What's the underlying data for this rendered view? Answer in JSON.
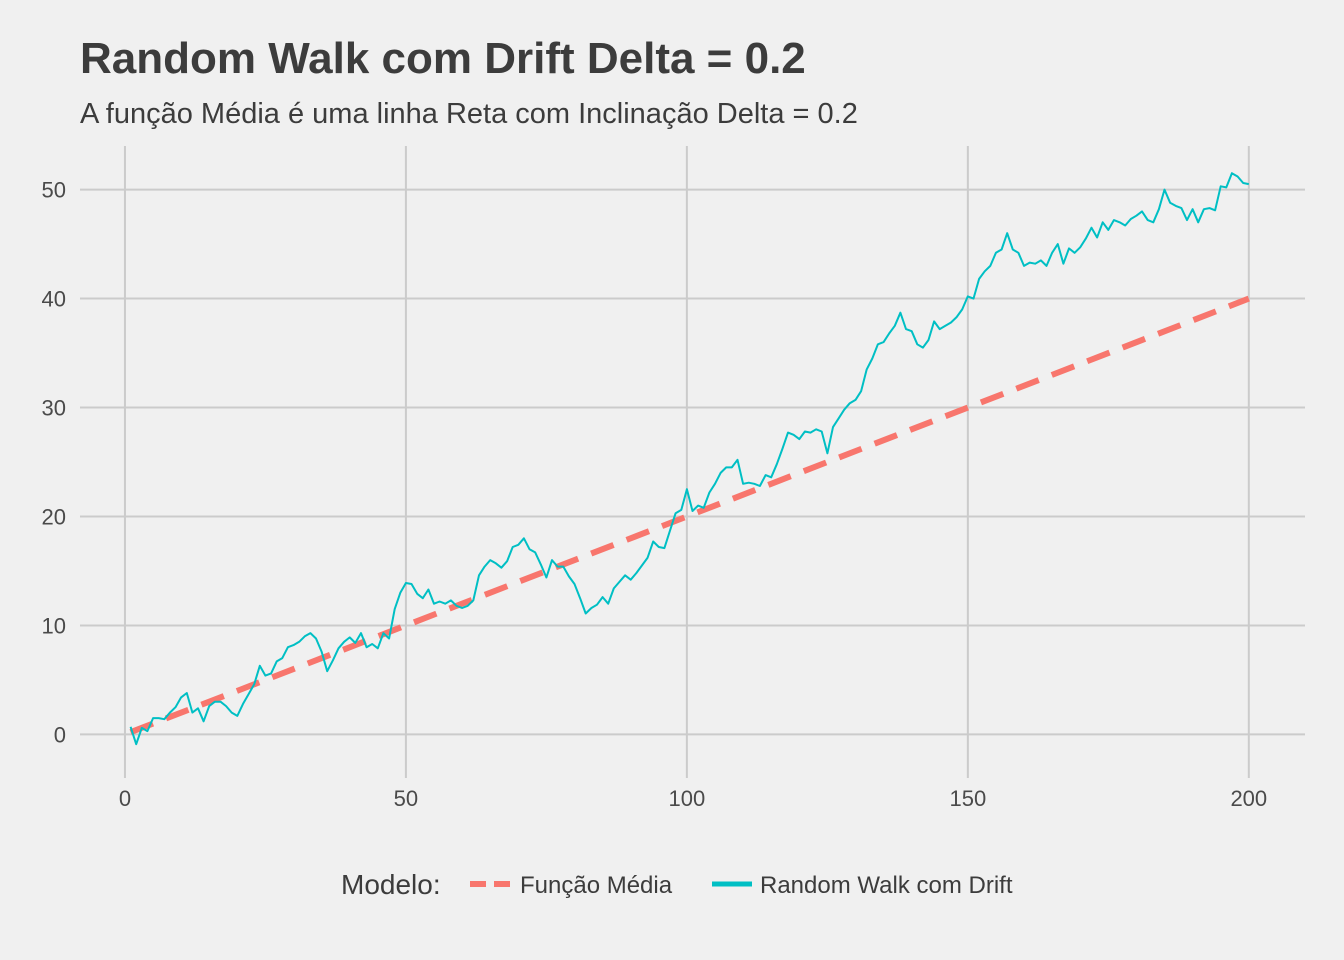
{
  "chart_data": {
    "type": "line",
    "title": "Random Walk com Drift Delta = 0.2",
    "subtitle": "A função Média é uma linha Reta com Inclinação Delta = 0.2",
    "xlabel": "",
    "ylabel": "",
    "xlim": [
      -8,
      210
    ],
    "ylim": [
      -4,
      54
    ],
    "x_ticks": [
      0,
      50,
      100,
      150,
      200
    ],
    "y_ticks": [
      0,
      10,
      20,
      30,
      40,
      50
    ],
    "grid": true,
    "legend": {
      "title": "Modelo:",
      "position": "bottom",
      "entries": [
        "Função Média",
        "Random Walk com Drift"
      ]
    },
    "series": [
      {
        "name": "Função Média",
        "color": "#f8766d",
        "style": "dashed",
        "x": [
          1,
          200
        ],
        "y": [
          0.2,
          40
        ]
      },
      {
        "name": "Random Walk com Drift",
        "color": "#00bfc4",
        "style": "solid",
        "points": [
          [
            1,
            0.7
          ],
          [
            2,
            -0.9
          ],
          [
            3,
            0.6
          ],
          [
            4,
            0.3
          ],
          [
            5,
            1.5
          ],
          [
            6,
            1.5
          ],
          [
            7,
            1.4
          ],
          [
            8,
            2.0
          ],
          [
            9,
            2.5
          ],
          [
            10,
            3.4
          ],
          [
            11,
            3.8
          ],
          [
            12,
            2.0
          ],
          [
            13,
            2.4
          ],
          [
            14,
            1.2
          ],
          [
            15,
            2.6
          ],
          [
            16,
            3.0
          ],
          [
            17,
            3.0
          ],
          [
            18,
            2.6
          ],
          [
            19,
            2.0
          ],
          [
            20,
            1.7
          ],
          [
            21,
            2.8
          ],
          [
            22,
            3.7
          ],
          [
            23,
            4.6
          ],
          [
            24,
            6.3
          ],
          [
            25,
            5.4
          ],
          [
            26,
            5.6
          ],
          [
            27,
            6.7
          ],
          [
            28,
            7.0
          ],
          [
            29,
            8.0
          ],
          [
            30,
            8.2
          ],
          [
            31,
            8.5
          ],
          [
            32,
            9.0
          ],
          [
            33,
            9.3
          ],
          [
            34,
            8.8
          ],
          [
            35,
            7.6
          ],
          [
            36,
            5.8
          ],
          [
            37,
            6.8
          ],
          [
            38,
            7.9
          ],
          [
            39,
            8.5
          ],
          [
            40,
            8.9
          ],
          [
            41,
            8.4
          ],
          [
            42,
            9.3
          ],
          [
            43,
            8.0
          ],
          [
            44,
            8.3
          ],
          [
            45,
            7.9
          ],
          [
            46,
            9.3
          ],
          [
            47,
            8.8
          ],
          [
            48,
            11.5
          ],
          [
            49,
            13.0
          ],
          [
            50,
            13.9
          ],
          [
            51,
            13.8
          ],
          [
            52,
            12.9
          ],
          [
            53,
            12.5
          ],
          [
            54,
            13.3
          ],
          [
            55,
            12.0
          ],
          [
            56,
            12.2
          ],
          [
            57,
            12.0
          ],
          [
            58,
            12.3
          ],
          [
            59,
            11.8
          ],
          [
            60,
            11.6
          ],
          [
            61,
            11.8
          ],
          [
            62,
            12.3
          ],
          [
            63,
            14.6
          ],
          [
            64,
            15.4
          ],
          [
            65,
            16.0
          ],
          [
            66,
            15.7
          ],
          [
            67,
            15.3
          ],
          [
            68,
            15.9
          ],
          [
            69,
            17.2
          ],
          [
            70,
            17.4
          ],
          [
            71,
            18.0
          ],
          [
            72,
            17.0
          ],
          [
            73,
            16.7
          ],
          [
            74,
            15.6
          ],
          [
            75,
            14.4
          ],
          [
            76,
            16.0
          ],
          [
            77,
            15.4
          ],
          [
            78,
            15.4
          ],
          [
            79,
            14.5
          ],
          [
            80,
            13.8
          ],
          [
            81,
            12.5
          ],
          [
            82,
            11.1
          ],
          [
            83,
            11.6
          ],
          [
            84,
            11.9
          ],
          [
            85,
            12.6
          ],
          [
            86,
            12.0
          ],
          [
            87,
            13.4
          ],
          [
            88,
            14.0
          ],
          [
            89,
            14.6
          ],
          [
            90,
            14.2
          ],
          [
            91,
            14.8
          ],
          [
            92,
            15.5
          ],
          [
            93,
            16.2
          ],
          [
            94,
            17.7
          ],
          [
            95,
            17.2
          ],
          [
            96,
            17.1
          ],
          [
            97,
            18.7
          ],
          [
            98,
            20.3
          ],
          [
            99,
            20.6
          ],
          [
            100,
            22.5
          ],
          [
            101,
            20.5
          ],
          [
            102,
            21.0
          ],
          [
            103,
            20.8
          ],
          [
            104,
            22.2
          ],
          [
            105,
            23.0
          ],
          [
            106,
            24.0
          ],
          [
            107,
            24.5
          ],
          [
            108,
            24.5
          ],
          [
            109,
            25.2
          ],
          [
            110,
            23.0
          ],
          [
            111,
            23.1
          ],
          [
            112,
            23.0
          ],
          [
            113,
            22.8
          ],
          [
            114,
            23.8
          ],
          [
            115,
            23.6
          ],
          [
            116,
            24.8
          ],
          [
            117,
            26.2
          ],
          [
            118,
            27.7
          ],
          [
            119,
            27.5
          ],
          [
            120,
            27.1
          ],
          [
            121,
            27.8
          ],
          [
            122,
            27.7
          ],
          [
            123,
            28.0
          ],
          [
            124,
            27.8
          ],
          [
            125,
            25.8
          ],
          [
            126,
            28.2
          ],
          [
            127,
            29.0
          ],
          [
            128,
            29.8
          ],
          [
            129,
            30.4
          ],
          [
            130,
            30.7
          ],
          [
            131,
            31.5
          ],
          [
            132,
            33.5
          ],
          [
            133,
            34.5
          ],
          [
            134,
            35.8
          ],
          [
            135,
            36.0
          ],
          [
            136,
            36.8
          ],
          [
            137,
            37.5
          ],
          [
            138,
            38.7
          ],
          [
            139,
            37.2
          ],
          [
            140,
            37.0
          ],
          [
            141,
            35.8
          ],
          [
            142,
            35.5
          ],
          [
            143,
            36.2
          ],
          [
            144,
            37.9
          ],
          [
            145,
            37.2
          ],
          [
            146,
            37.5
          ],
          [
            147,
            37.8
          ],
          [
            148,
            38.3
          ],
          [
            149,
            39.0
          ],
          [
            150,
            40.2
          ],
          [
            151,
            40.0
          ],
          [
            152,
            41.8
          ],
          [
            153,
            42.5
          ],
          [
            154,
            43.0
          ],
          [
            155,
            44.2
          ],
          [
            156,
            44.5
          ],
          [
            157,
            46.0
          ],
          [
            158,
            44.5
          ],
          [
            159,
            44.2
          ],
          [
            160,
            43.0
          ],
          [
            161,
            43.3
          ],
          [
            162,
            43.2
          ],
          [
            163,
            43.5
          ],
          [
            164,
            43.0
          ],
          [
            165,
            44.2
          ],
          [
            166,
            45.0
          ],
          [
            167,
            43.2
          ],
          [
            168,
            44.6
          ],
          [
            169,
            44.2
          ],
          [
            170,
            44.7
          ],
          [
            171,
            45.5
          ],
          [
            172,
            46.5
          ],
          [
            173,
            45.6
          ],
          [
            174,
            47.0
          ],
          [
            175,
            46.3
          ],
          [
            176,
            47.2
          ],
          [
            177,
            47.0
          ],
          [
            178,
            46.7
          ],
          [
            179,
            47.3
          ],
          [
            180,
            47.6
          ],
          [
            181,
            48.0
          ],
          [
            182,
            47.2
          ],
          [
            183,
            47.0
          ],
          [
            184,
            48.2
          ],
          [
            185,
            50.0
          ],
          [
            186,
            48.8
          ],
          [
            187,
            48.5
          ],
          [
            188,
            48.3
          ],
          [
            189,
            47.2
          ],
          [
            190,
            48.2
          ],
          [
            191,
            47.0
          ],
          [
            192,
            48.2
          ],
          [
            193,
            48.3
          ],
          [
            194,
            48.1
          ],
          [
            195,
            50.3
          ],
          [
            196,
            50.2
          ],
          [
            197,
            51.5
          ],
          [
            198,
            51.2
          ],
          [
            199,
            50.6
          ],
          [
            200,
            50.5
          ]
        ]
      }
    ]
  }
}
